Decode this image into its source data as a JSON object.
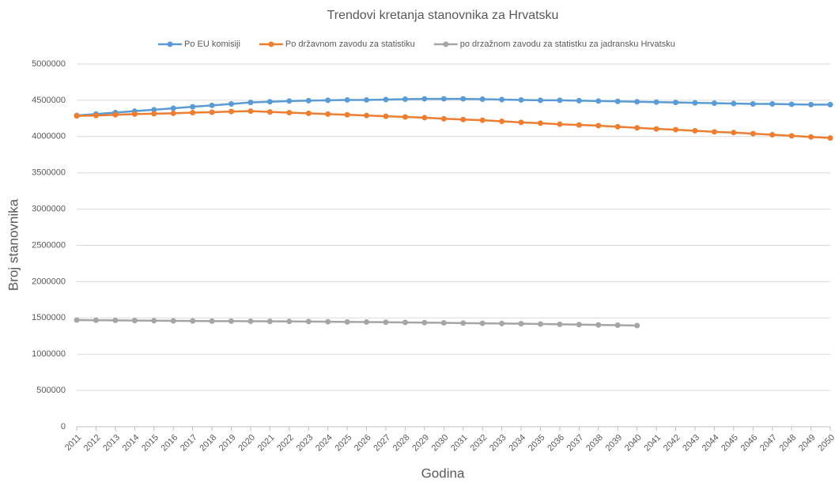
{
  "chart_data": {
    "type": "line",
    "title": "Trendovi kretanja stanovnika za Hrvatsku",
    "y_label": "Broj stanovnika",
    "x_label": "Godina",
    "categories": [
      "2011",
      "2012",
      "2013",
      "2014",
      "2015",
      "2016",
      "2017",
      "2018",
      "2019",
      "2020",
      "2021",
      "2022",
      "2023",
      "2024",
      "2025",
      "2026",
      "2027",
      "2028",
      "2029",
      "2030",
      "2031",
      "2032",
      "2033",
      "2034",
      "2035",
      "2036",
      "2037",
      "2038",
      "2039",
      "2040",
      "2041",
      "2042",
      "2043",
      "2044",
      "2045",
      "2046",
      "2047",
      "2048",
      "2049",
      "2050"
    ],
    "series": [
      {
        "name": "Po EU komisiji",
        "color": "#5b9bd5",
        "values": [
          4290000,
          4310000,
          4330000,
          4350000,
          4370000,
          4390000,
          4410000,
          4430000,
          4450000,
          4470000,
          4480000,
          4490000,
          4495000,
          4500000,
          4505000,
          4505000,
          4510000,
          4515000,
          4520000,
          4520000,
          4520000,
          4515000,
          4510000,
          4505000,
          4500000,
          4500000,
          4495000,
          4490000,
          4485000,
          4480000,
          4475000,
          4470000,
          4465000,
          4460000,
          4455000,
          4450000,
          4450000,
          4445000,
          4440000,
          4440000
        ]
      },
      {
        "name": "Po državnom zavodu za statistiku",
        "color": "#ed7d31",
        "values": [
          4285000,
          4290000,
          4300000,
          4310000,
          4315000,
          4320000,
          4330000,
          4335000,
          4345000,
          4350000,
          4340000,
          4330000,
          4320000,
          4310000,
          4300000,
          4290000,
          4280000,
          4270000,
          4260000,
          4245000,
          4235000,
          4225000,
          4210000,
          4195000,
          4185000,
          4170000,
          4160000,
          4150000,
          4135000,
          4120000,
          4105000,
          4095000,
          4080000,
          4065000,
          4055000,
          4040000,
          4025000,
          4010000,
          3995000,
          3980000
        ]
      },
      {
        "name": "po drzažnom zavodu za statistku za jadransku Hrvatsku",
        "color": "#a5a5a5",
        "values": [
          1470000,
          1468000,
          1466000,
          1464000,
          1462000,
          1460000,
          1458000,
          1456000,
          1455000,
          1454000,
          1453000,
          1452000,
          1450000,
          1447000,
          1445000,
          1443000,
          1441000,
          1438000,
          1435000,
          1432000,
          1429000,
          1426000,
          1423000,
          1420000,
          1416000,
          1412000,
          1408000,
          1404000,
          1400000,
          1395000,
          null,
          null,
          null,
          null,
          null,
          null,
          null,
          null,
          null,
          null
        ]
      }
    ],
    "ylim": [
      0,
      5000000
    ],
    "yticks": [
      0,
      500000,
      1000000,
      1500000,
      2000000,
      2500000,
      3000000,
      3500000,
      4000000,
      4500000,
      5000000
    ],
    "grid": true,
    "legend": "top"
  }
}
